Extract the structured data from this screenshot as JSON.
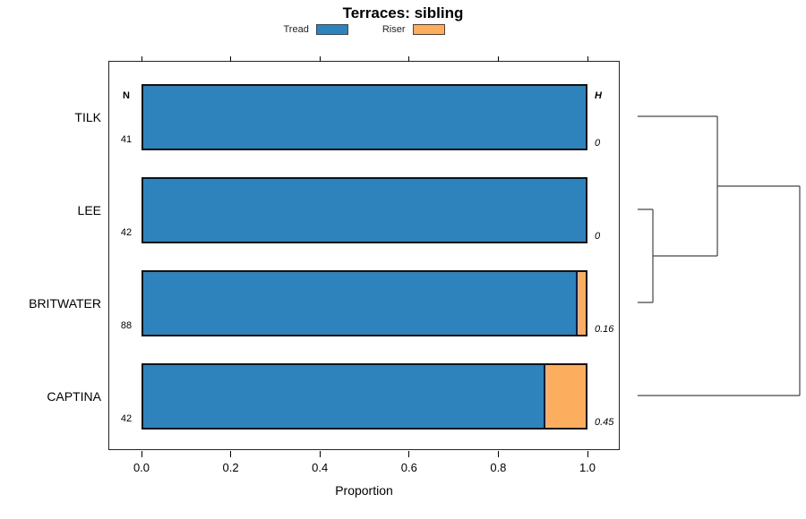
{
  "title": "Terraces: sibling",
  "legend": {
    "items": [
      {
        "label": "Tread",
        "color": "#2E83BC"
      },
      {
        "label": "Riser",
        "color": "#FCAD5E"
      }
    ]
  },
  "axis": {
    "label": "Proportion",
    "ticks": [
      {
        "label": "0.0",
        "value": 0.0
      },
      {
        "label": "0.2",
        "value": 0.2
      },
      {
        "label": "0.4",
        "value": 0.4
      },
      {
        "label": "0.6",
        "value": 0.6
      },
      {
        "label": "0.8",
        "value": 0.8
      },
      {
        "label": "1.0",
        "value": 1.0
      }
    ]
  },
  "columns": {
    "n_header": "N",
    "h_header": "H"
  },
  "chart_data": {
    "type": "bar",
    "orientation": "horizontal",
    "stacked": true,
    "title": "Terraces: sibling",
    "xlabel": "Proportion",
    "xlim": [
      -0.07,
      1.07
    ],
    "grid": false,
    "legend_position": "top",
    "categories": [
      "TILK",
      "LEE",
      "BRITWATER",
      "CAPTINA"
    ],
    "row_n": [
      41,
      42,
      88,
      42
    ],
    "row_h": [
      "0",
      "0",
      "0.16",
      "0.45"
    ],
    "series": [
      {
        "name": "Tread",
        "color": "#2E83BC",
        "values": [
          1.0,
          1.0,
          0.977,
          0.905
        ]
      },
      {
        "name": "Riser",
        "color": "#FCAD5E",
        "values": [
          0.0,
          0.0,
          0.023,
          0.095
        ]
      }
    ],
    "dendrogram": {
      "leaf_order": [
        "TILK",
        "LEE",
        "BRITWATER",
        "CAPTINA"
      ],
      "merges": [
        {
          "a": "LEE",
          "b": "BRITWATER",
          "height": 0.094
        },
        {
          "a": "TILK",
          "b": "node0",
          "height": 0.492
        },
        {
          "a": "CAPTINA",
          "b": "node1",
          "height": 1.0
        }
      ],
      "line_color": "#444444"
    }
  }
}
